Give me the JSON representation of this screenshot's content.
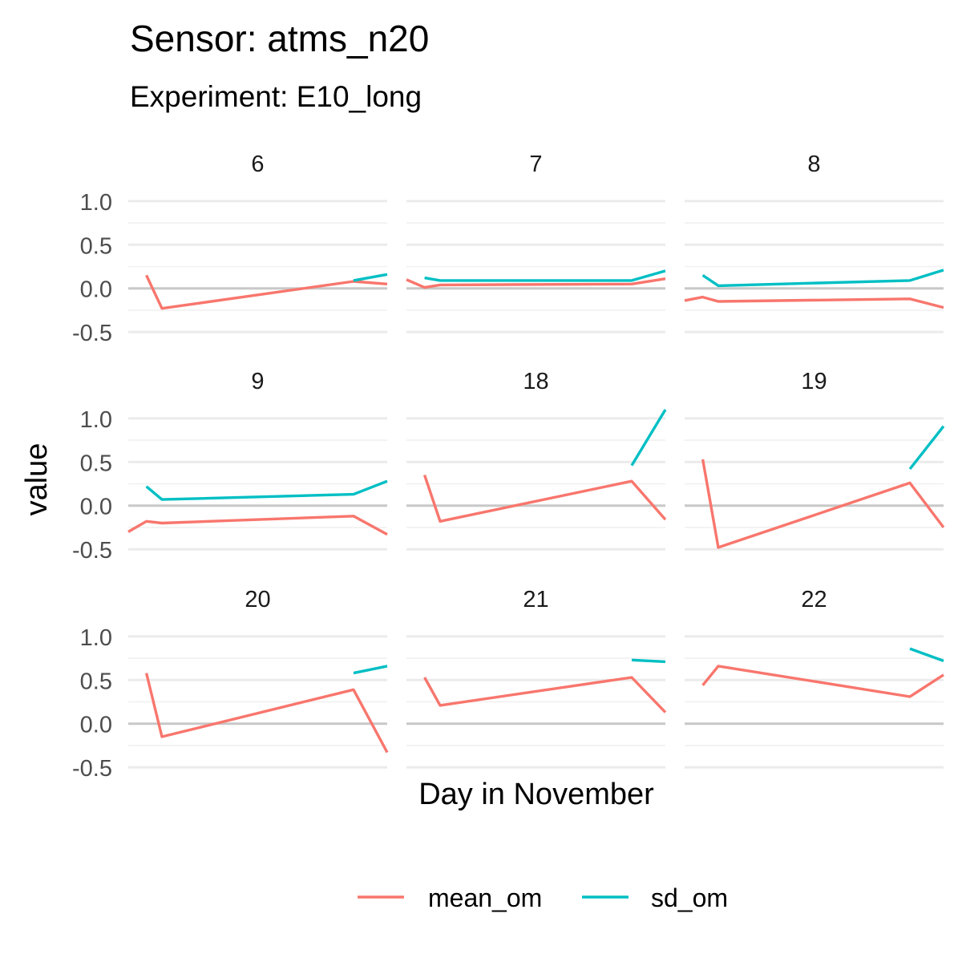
{
  "title": "Sensor: atms_n20",
  "subtitle": "Experiment: E10_long",
  "chart_data": {
    "type": "line",
    "xlabel": "Day in November",
    "ylabel": "value",
    "ylim": [
      -0.6,
      1.1
    ],
    "y_ticks": [
      -0.5,
      0.0,
      0.5,
      1.0
    ],
    "y_tick_labels": [
      "-0.5",
      "0.0",
      "0.5",
      "1.0"
    ],
    "grid": true,
    "legend_position": "bottom",
    "legend": [
      {
        "name": "mean_om",
        "color": "#F8766D"
      },
      {
        "name": "sd_om",
        "color": "#00BFC4"
      }
    ],
    "panels": [
      {
        "label": "6",
        "series": [
          {
            "name": "mean_om",
            "points": [
              [
                0.07,
                0.15
              ],
              [
                0.13,
                -0.23
              ],
              [
                0.87,
                0.08
              ],
              [
                1.0,
                0.05
              ]
            ]
          },
          {
            "name": "sd_om",
            "points": [
              [
                0.87,
                0.09
              ],
              [
                1.0,
                0.16
              ]
            ]
          }
        ]
      },
      {
        "label": "7",
        "series": [
          {
            "name": "mean_om",
            "points": [
              [
                0.0,
                0.1
              ],
              [
                0.07,
                0.01
              ],
              [
                0.13,
                0.04
              ],
              [
                0.87,
                0.05
              ],
              [
                1.0,
                0.11
              ]
            ]
          },
          {
            "name": "sd_om",
            "points": [
              [
                0.07,
                0.12
              ],
              [
                0.13,
                0.09
              ],
              [
                0.87,
                0.09
              ],
              [
                1.0,
                0.2
              ]
            ]
          }
        ]
      },
      {
        "label": "8",
        "series": [
          {
            "name": "mean_om",
            "points": [
              [
                0.0,
                -0.14
              ],
              [
                0.07,
                -0.1
              ],
              [
                0.13,
                -0.15
              ],
              [
                0.87,
                -0.12
              ],
              [
                1.0,
                -0.22
              ]
            ]
          },
          {
            "name": "sd_om",
            "points": [
              [
                0.07,
                0.15
              ],
              [
                0.13,
                0.03
              ],
              [
                0.87,
                0.09
              ],
              [
                1.0,
                0.21
              ]
            ]
          }
        ]
      },
      {
        "label": "9",
        "series": [
          {
            "name": "mean_om",
            "points": [
              [
                0.0,
                -0.3
              ],
              [
                0.07,
                -0.18
              ],
              [
                0.13,
                -0.2
              ],
              [
                0.87,
                -0.12
              ],
              [
                1.0,
                -0.33
              ]
            ]
          },
          {
            "name": "sd_om",
            "points": [
              [
                0.07,
                0.22
              ],
              [
                0.13,
                0.07
              ],
              [
                0.87,
                0.13
              ],
              [
                1.0,
                0.28
              ]
            ]
          }
        ]
      },
      {
        "label": "18",
        "series": [
          {
            "name": "mean_om",
            "points": [
              [
                0.07,
                0.35
              ],
              [
                0.13,
                -0.18
              ],
              [
                0.87,
                0.28
              ],
              [
                1.0,
                -0.16
              ]
            ]
          },
          {
            "name": "sd_om",
            "points": [
              [
                0.87,
                0.46
              ],
              [
                1.0,
                1.1
              ]
            ]
          }
        ]
      },
      {
        "label": "19",
        "series": [
          {
            "name": "mean_om",
            "points": [
              [
                0.07,
                0.53
              ],
              [
                0.13,
                -0.48
              ],
              [
                0.87,
                0.26
              ],
              [
                1.0,
                -0.25
              ]
            ]
          },
          {
            "name": "sd_om",
            "points": [
              [
                0.87,
                0.42
              ],
              [
                1.0,
                0.91
              ]
            ]
          }
        ]
      },
      {
        "label": "20",
        "series": [
          {
            "name": "mean_om",
            "points": [
              [
                0.07,
                0.58
              ],
              [
                0.13,
                -0.15
              ],
              [
                0.87,
                0.39
              ],
              [
                1.0,
                -0.33
              ]
            ]
          },
          {
            "name": "sd_om",
            "points": [
              [
                0.87,
                0.58
              ],
              [
                1.0,
                0.66
              ]
            ]
          }
        ]
      },
      {
        "label": "21",
        "series": [
          {
            "name": "mean_om",
            "points": [
              [
                0.07,
                0.53
              ],
              [
                0.13,
                0.21
              ],
              [
                0.87,
                0.53
              ],
              [
                1.0,
                0.13
              ]
            ]
          },
          {
            "name": "sd_om",
            "points": [
              [
                0.87,
                0.73
              ],
              [
                1.0,
                0.71
              ]
            ]
          }
        ]
      },
      {
        "label": "22",
        "series": [
          {
            "name": "mean_om",
            "points": [
              [
                0.07,
                0.44
              ],
              [
                0.13,
                0.66
              ],
              [
                0.87,
                0.31
              ],
              [
                1.0,
                0.56
              ]
            ]
          },
          {
            "name": "sd_om",
            "points": [
              [
                0.87,
                0.86
              ],
              [
                1.0,
                0.72
              ]
            ]
          }
        ]
      }
    ]
  }
}
